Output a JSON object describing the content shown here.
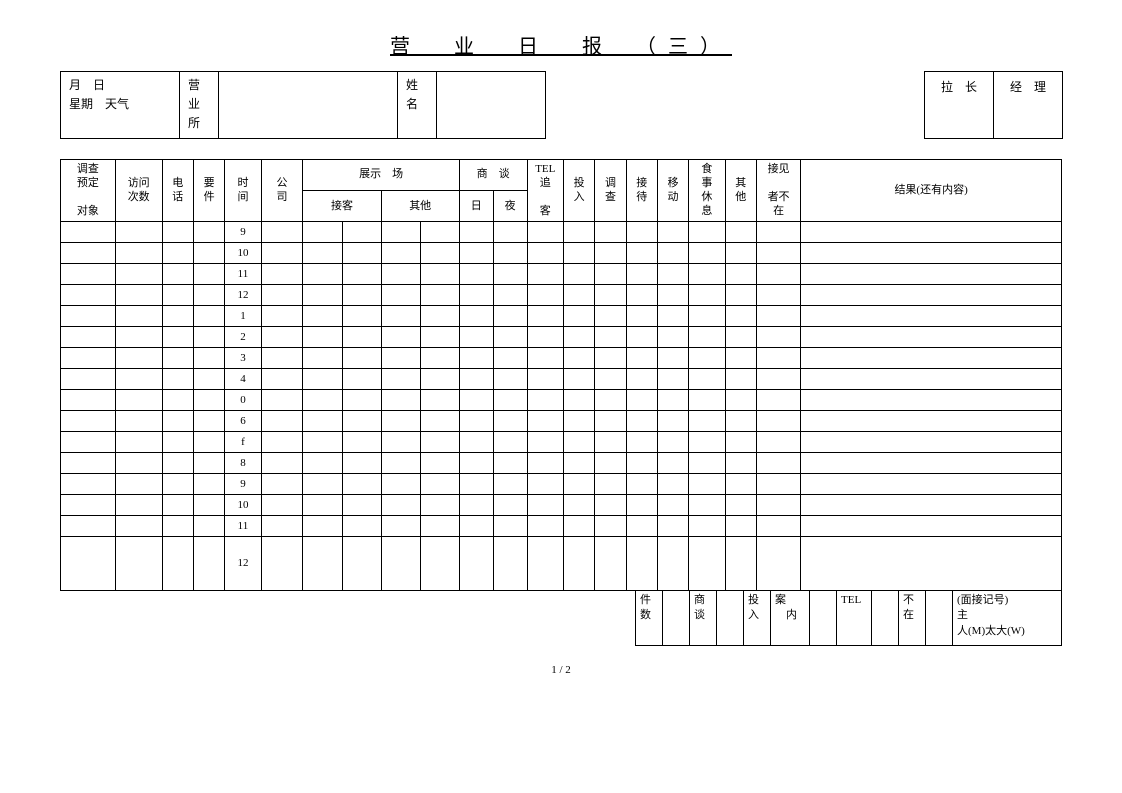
{
  "page_title": "营　业　日　报　（三）",
  "header": {
    "date_box": "月　日\n星期　天气",
    "office_label": "营\n业\n所",
    "name_label": "姓\n名",
    "leader_label": "拉　长",
    "manager_label": "经　理"
  },
  "columns": {
    "survey_target": "调查\n预定\n\n对象",
    "visit_count": "访问\n次数",
    "phone": "电\n话",
    "matter": "要\n件",
    "time": "时\n间",
    "company": "公\n司",
    "exhibition": "展示　场",
    "reception": "接客",
    "other1": "其他",
    "negotiation": "商　谈",
    "day": "日",
    "night": "夜",
    "tel_follow": "TEL\n追\n\n客",
    "input": "投\n入",
    "survey": "调\n查",
    "hospitality": "接\n待",
    "move": "移\n动",
    "meal_rest": "食\n事\n休\n息",
    "other2": "其\n他",
    "visitor": "接见\n\n者不\n在",
    "result": "结果(还有内容)"
  },
  "time_rows": [
    "9",
    "10",
    "11",
    "12",
    "1",
    "2",
    "3",
    "4",
    "0",
    "6",
    "f",
    "8",
    "9",
    "10",
    "11",
    "12"
  ],
  "footer": {
    "count": "件\n数",
    "negotiation": "商\n谈",
    "input": "投\n入",
    "case_in": "案\n　内",
    "tel": "TEL",
    "absent": "不\n在",
    "interview_mark": "(面接记号)\n主\n人(M)太大(W)"
  },
  "page_number": "1 / 2"
}
